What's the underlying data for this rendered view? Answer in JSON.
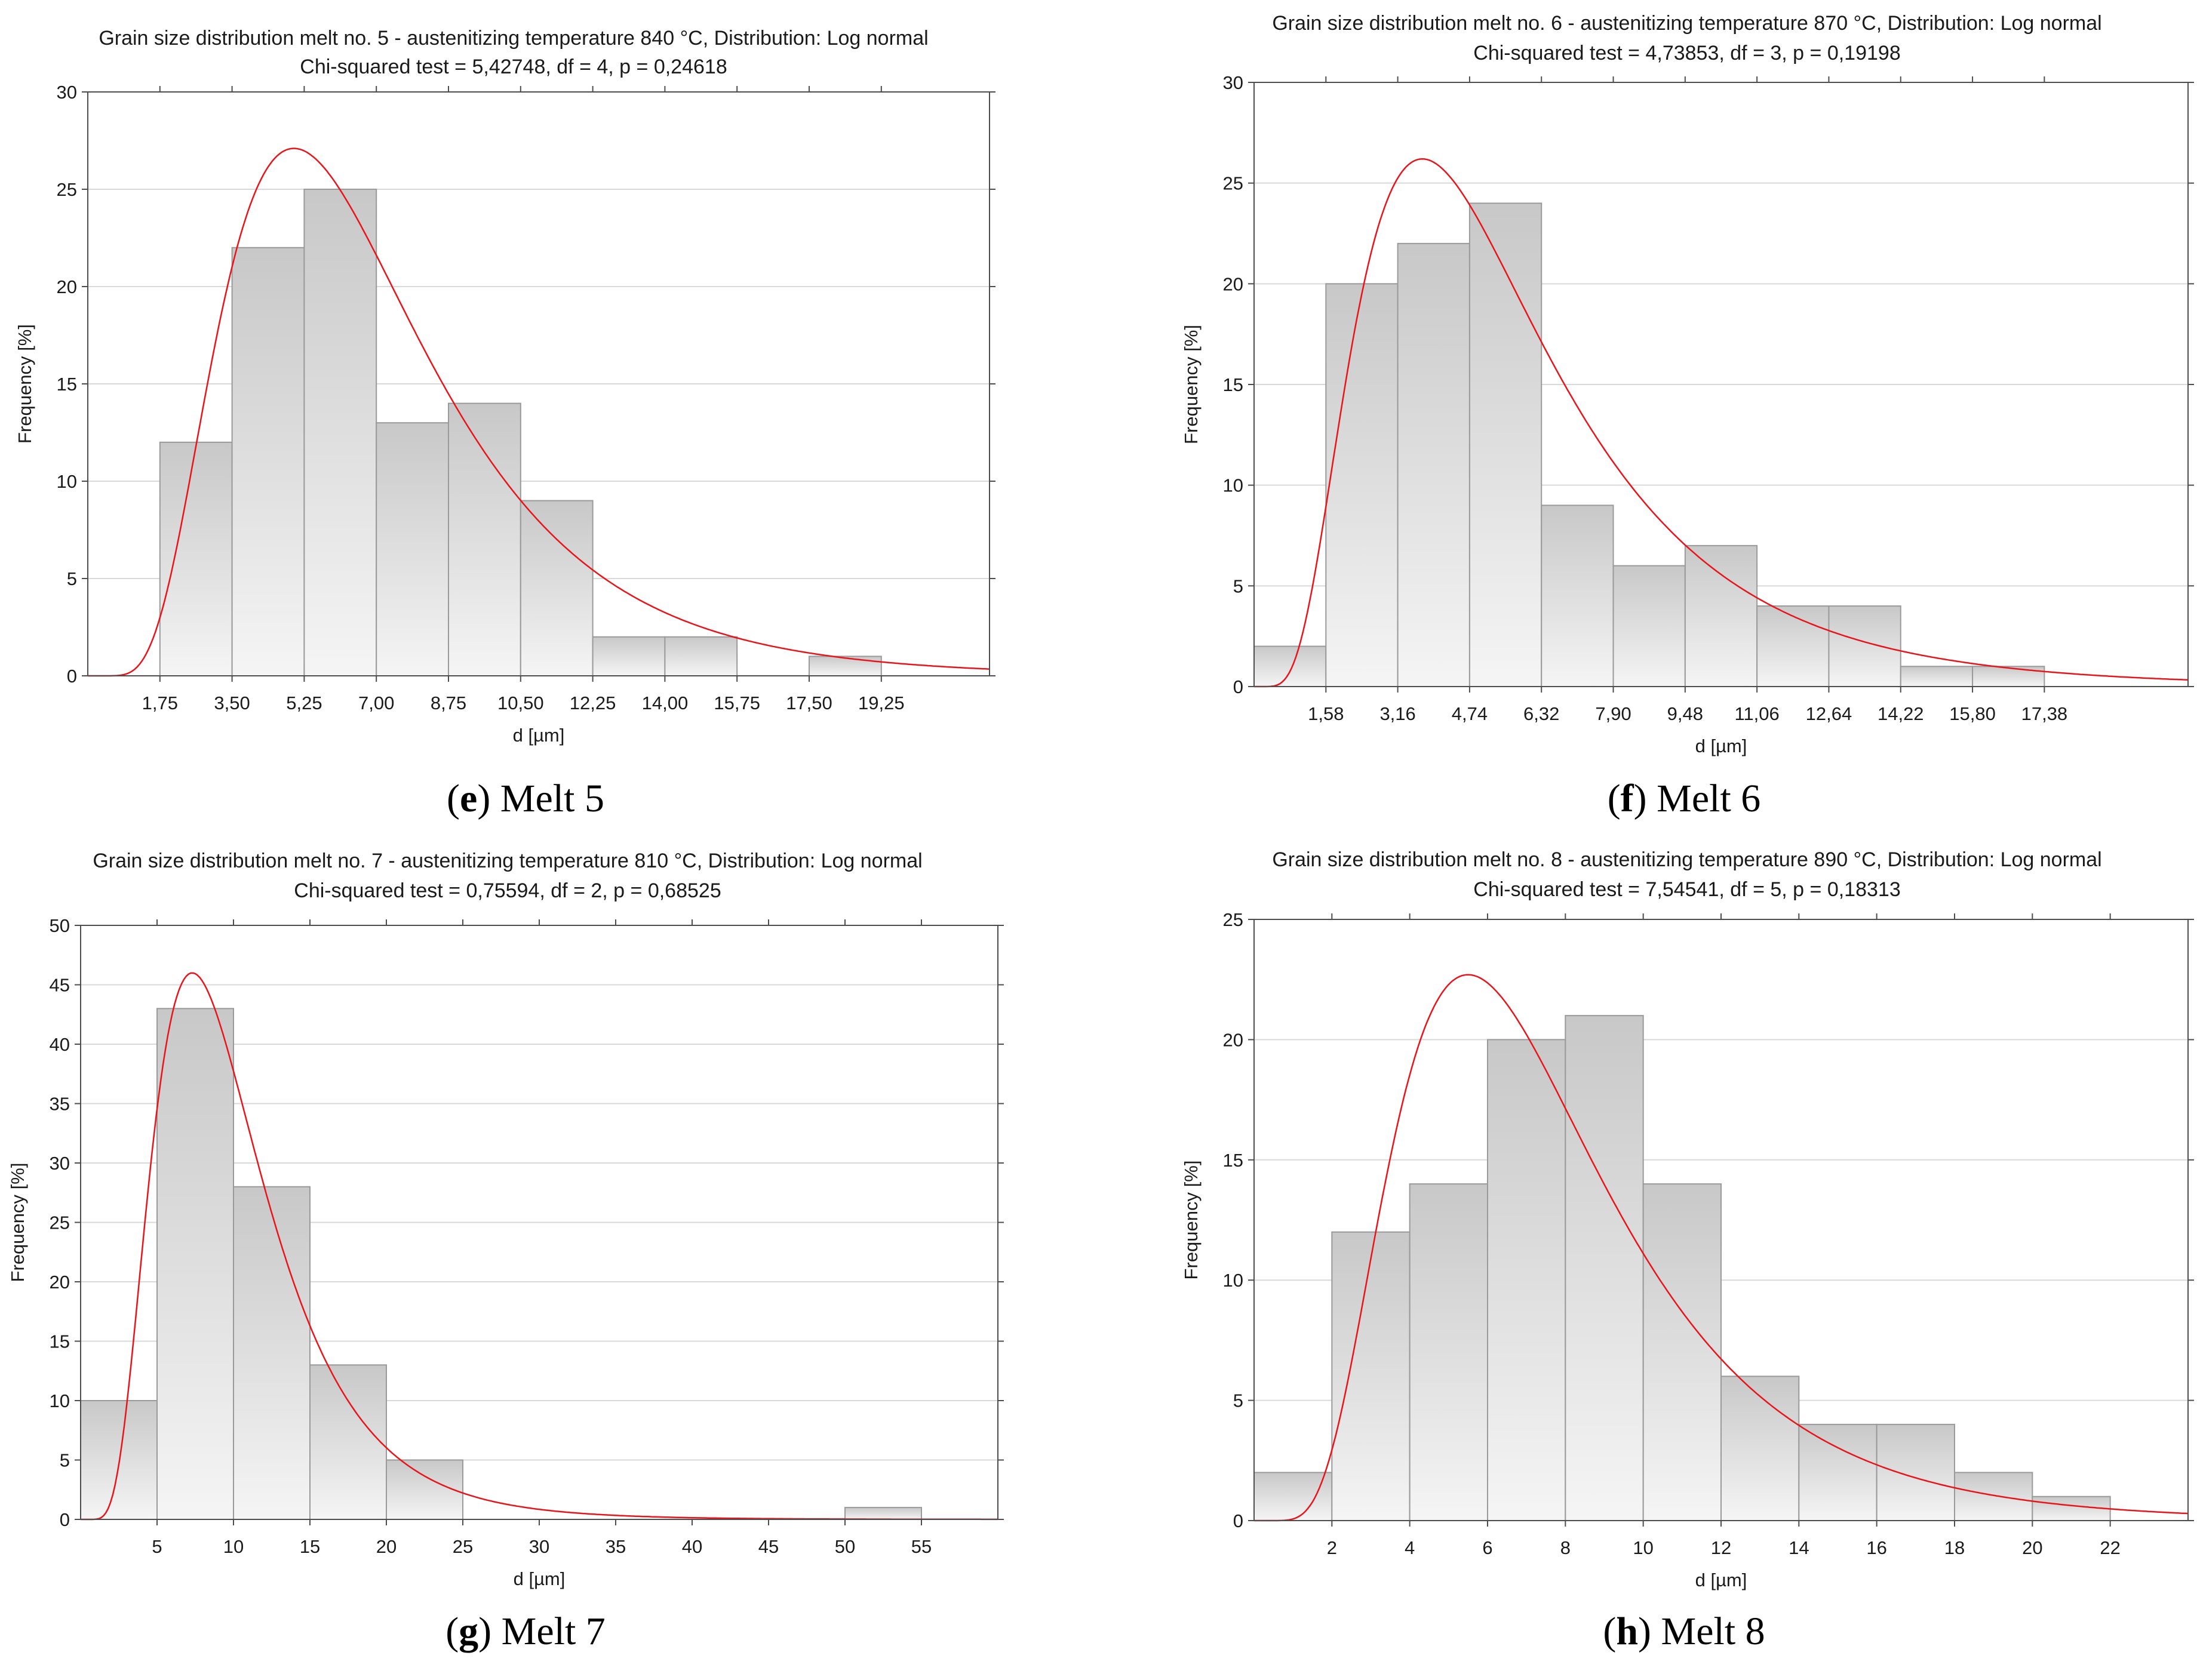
{
  "chart_data": [
    {
      "type": "bar",
      "id": "e",
      "title_line1": "Grain size distribution melt no. 5 - austenitizing temperature 840 °C, Distribution: Log normal",
      "title_line2": "Chi-squared test = 5,42748, df = 4, p = 0,24618",
      "xlabel": "d [µm]",
      "ylabel": "Frequency [%]",
      "xlim": [
        0,
        21.875
      ],
      "ylim": [
        0,
        30
      ],
      "yticks": [
        0,
        5,
        10,
        15,
        20,
        25,
        30
      ],
      "xticks": [
        1.75,
        3.5,
        5.25,
        7.0,
        8.75,
        10.5,
        12.25,
        14.0,
        15.75,
        17.5,
        19.25
      ],
      "xtick_labels": [
        "1,75",
        "3,50",
        "5,25",
        "7,00",
        "8,75",
        "10,50",
        "12,25",
        "14,00",
        "15,75",
        "17,50",
        "19,25"
      ],
      "bin_edges": [
        0,
        1.75,
        3.5,
        5.25,
        7.0,
        8.75,
        10.5,
        12.25,
        14.0,
        15.75,
        17.5,
        19.25,
        21.0
      ],
      "values": [
        0,
        12,
        22,
        25,
        13,
        14,
        9,
        2,
        2,
        0,
        1,
        0
      ],
      "fit": {
        "distribution": "Log normal",
        "peak_x": 5.0,
        "peak_y": 27.1,
        "sigma": 0.5
      }
    },
    {
      "type": "bar",
      "id": "f",
      "title_line1": "Grain size distribution melt no. 6 - austenitizing temperature 870 °C, Distribution: Log normal",
      "title_line2": "Chi-squared test = 4,73853, df = 3, p = 0,19198",
      "xlabel": "d [µm]",
      "ylabel": "Frequency [%]",
      "xlim": [
        0,
        20.54
      ],
      "ylim": [
        0,
        30
      ],
      "yticks": [
        0,
        5,
        10,
        15,
        20,
        25,
        30
      ],
      "xticks": [
        1.58,
        3.16,
        4.74,
        6.32,
        7.9,
        9.48,
        11.06,
        12.64,
        14.22,
        15.8,
        17.38
      ],
      "xtick_labels": [
        "1,58",
        "3,16",
        "4,74",
        "6,32",
        "7,90",
        "9,48",
        "11,06",
        "12,64",
        "14,22",
        "15,80",
        "17,38"
      ],
      "bin_edges": [
        0,
        1.58,
        3.16,
        4.74,
        6.32,
        7.9,
        9.48,
        11.06,
        12.64,
        14.22,
        15.8,
        17.38
      ],
      "values": [
        2,
        20,
        22,
        24,
        9,
        6,
        7,
        4,
        4,
        1,
        1
      ],
      "fit": {
        "distribution": "Log normal",
        "peak_x": 3.7,
        "peak_y": 26.2,
        "sigma": 0.58
      }
    },
    {
      "type": "bar",
      "id": "g",
      "title_line1": "Grain size distribution melt no. 7 - austenitizing temperature 810 °C, Distribution: Log normal",
      "title_line2": "Chi-squared test = 0,75594, df = 2, p = 0,68525",
      "xlabel": "d [µm]",
      "ylabel": "Frequency [%]",
      "xlim": [
        0,
        60
      ],
      "ylim": [
        0,
        50
      ],
      "yticks": [
        0,
        5,
        10,
        15,
        20,
        25,
        30,
        35,
        40,
        45,
        50
      ],
      "xticks": [
        5,
        10,
        15,
        20,
        25,
        30,
        35,
        40,
        45,
        50,
        55
      ],
      "xtick_labels": [
        "5",
        "10",
        "15",
        "20",
        "25",
        "30",
        "35",
        "40",
        "45",
        "50",
        "55"
      ],
      "bin_edges": [
        0,
        5,
        10,
        15,
        20,
        25,
        30,
        35,
        40,
        45,
        50,
        55
      ],
      "values": [
        10,
        43,
        28,
        13,
        5,
        0,
        0,
        0,
        0,
        0,
        1
      ],
      "fit": {
        "distribution": "Log normal",
        "peak_x": 7.3,
        "peak_y": 46.0,
        "sigma": 0.5
      }
    },
    {
      "type": "bar",
      "id": "h",
      "title_line1": "Grain size distribution melt no. 8 - austenitizing temperature 890 °C, Distribution: Log normal",
      "title_line2": "Chi-squared test = 7,54541, df = 5, p = 0,18313",
      "xlabel": "d [µm]",
      "ylabel": "Frequency [%]",
      "xlim": [
        0,
        24
      ],
      "ylim": [
        0,
        25
      ],
      "yticks": [
        0,
        5,
        10,
        15,
        20,
        25
      ],
      "xticks": [
        2,
        4,
        6,
        8,
        10,
        12,
        14,
        16,
        18,
        20,
        22
      ],
      "xtick_labels": [
        "2",
        "4",
        "6",
        "8",
        "10",
        "12",
        "14",
        "16",
        "18",
        "20",
        "22"
      ],
      "bin_edges": [
        0,
        2,
        4,
        6,
        8,
        10,
        12,
        14,
        16,
        18,
        20,
        22
      ],
      "values": [
        2,
        12,
        14,
        20,
        21,
        14,
        6,
        4,
        4,
        2,
        1
      ],
      "fit": {
        "distribution": "Log normal",
        "peak_x": 5.5,
        "peak_y": 22.7,
        "sigma": 0.5
      }
    }
  ],
  "captions": [
    {
      "letter": "e",
      "text": "Melt 5"
    },
    {
      "letter": "f",
      "text": "Melt 6"
    },
    {
      "letter": "g",
      "text": "Melt 7"
    },
    {
      "letter": "h",
      "text": "Melt 8"
    }
  ],
  "colors": {
    "fit_line": "#e8141a",
    "bar_top": "#c8c8c8",
    "bar_bottom": "#f5f5f5",
    "bar_stroke": "#9a9a9a",
    "grid": "#d9d9d9"
  }
}
